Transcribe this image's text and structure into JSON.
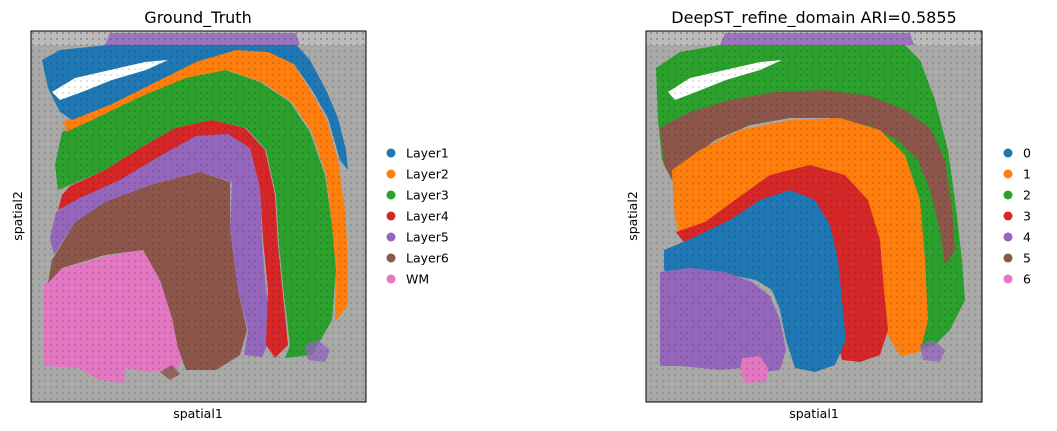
{
  "figure": {
    "background": "#ffffff",
    "tissue_color": "#a9aaa8",
    "frame_color": "#000000"
  },
  "chart_data": [
    {
      "type": "scatter",
      "subtype": "spatial-domain-map",
      "title": "Ground_Truth",
      "xlabel": "spatial1",
      "ylabel": "spatial2",
      "ticks": "none",
      "legend_position": "right",
      "legend": [
        {
          "label": "Layer1",
          "color": "#1f77b4"
        },
        {
          "label": "Layer2",
          "color": "#ff7f0e"
        },
        {
          "label": "Layer3",
          "color": "#2ca02c"
        },
        {
          "label": "Layer4",
          "color": "#d62728"
        },
        {
          "label": "Layer5",
          "color": "#9467bd"
        },
        {
          "label": "Layer6",
          "color": "#8c564b"
        },
        {
          "label": "WM",
          "color": "#e377c2"
        }
      ]
    },
    {
      "type": "scatter",
      "subtype": "spatial-domain-map",
      "title": "DeepST_refine_domain ARI=0.5855",
      "xlabel": "spatial1",
      "ylabel": "spatial2",
      "ticks": "none",
      "legend_position": "right",
      "legend": [
        {
          "label": "0",
          "color": "#1f77b4"
        },
        {
          "label": "1",
          "color": "#ff7f0e"
        },
        {
          "label": "2",
          "color": "#2ca02c"
        },
        {
          "label": "3",
          "color": "#d62728"
        },
        {
          "label": "4",
          "color": "#9467bd"
        },
        {
          "label": "5",
          "color": "#8c564b"
        },
        {
          "label": "6",
          "color": "#e377c2"
        }
      ]
    }
  ]
}
